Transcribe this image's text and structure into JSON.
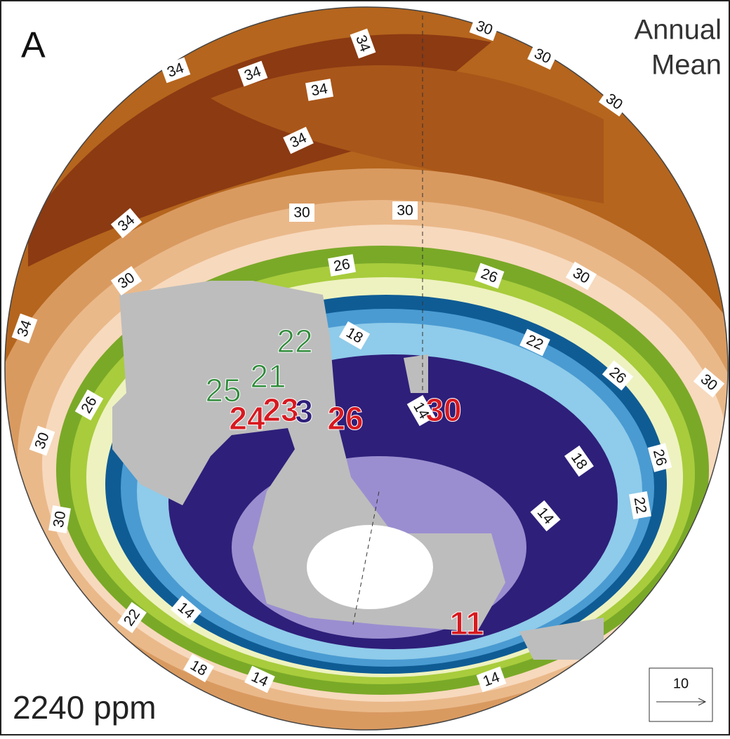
{
  "panel_label": "A",
  "title_lines": [
    "Annual",
    "Mean"
  ],
  "co2_label": "2240 ppm",
  "scale_label": "10",
  "contour_labels": [
    "34",
    "30",
    "30",
    "30",
    "34",
    "34",
    "34",
    "34",
    "34",
    "30",
    "30",
    "30",
    "26",
    "26",
    "30",
    "34",
    "18",
    "22",
    "26",
    "30",
    "26",
    "30",
    "14",
    "18",
    "26",
    "22",
    "14",
    "30",
    "22",
    "14",
    "18",
    "14",
    "14"
  ],
  "site_labels_green": [
    "22",
    "21",
    "25"
  ],
  "site_labels_red": [
    "24",
    "23",
    "3",
    "26",
    "30",
    "11"
  ]
}
